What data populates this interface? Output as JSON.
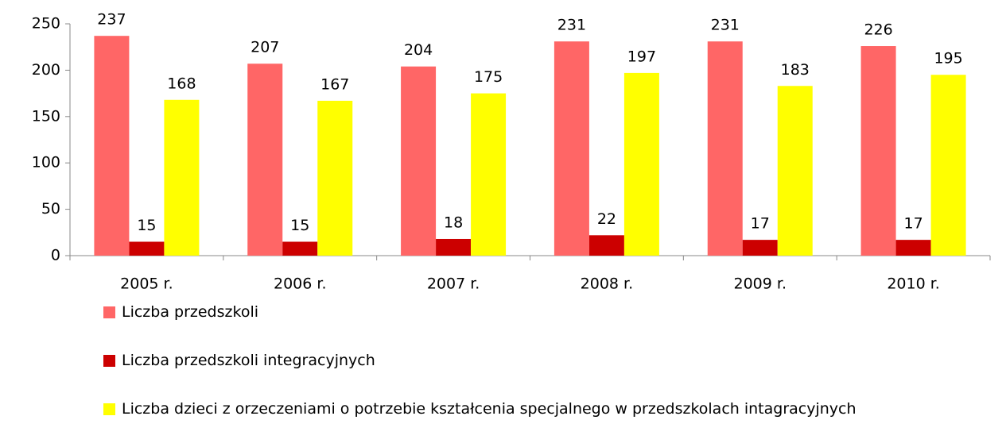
{
  "chart_data": {
    "type": "bar",
    "categories": [
      "2005 r.",
      "2006 r.",
      "2007 r.",
      "2008 r.",
      "2009 r.",
      "2010 r."
    ],
    "series": [
      {
        "name": "Liczba przedszkoli",
        "color": "#ff6666",
        "values": [
          237,
          207,
          204,
          231,
          231,
          226
        ]
      },
      {
        "name": "Liczba przedszkoli integracyjnych",
        "color": "#cc0000",
        "values": [
          15,
          15,
          18,
          22,
          17,
          17
        ]
      },
      {
        "name": "Liczba dzieci z orzeczeniami o potrzebie kształcenia specjalnego w przedszkolach intagracyjnych",
        "color": "#ffff00",
        "values": [
          168,
          167,
          175,
          197,
          183,
          195
        ]
      }
    ],
    "ylim": [
      0,
      250
    ],
    "yticks": [
      0,
      50,
      100,
      150,
      200,
      250
    ],
    "legend": "bottom"
  }
}
